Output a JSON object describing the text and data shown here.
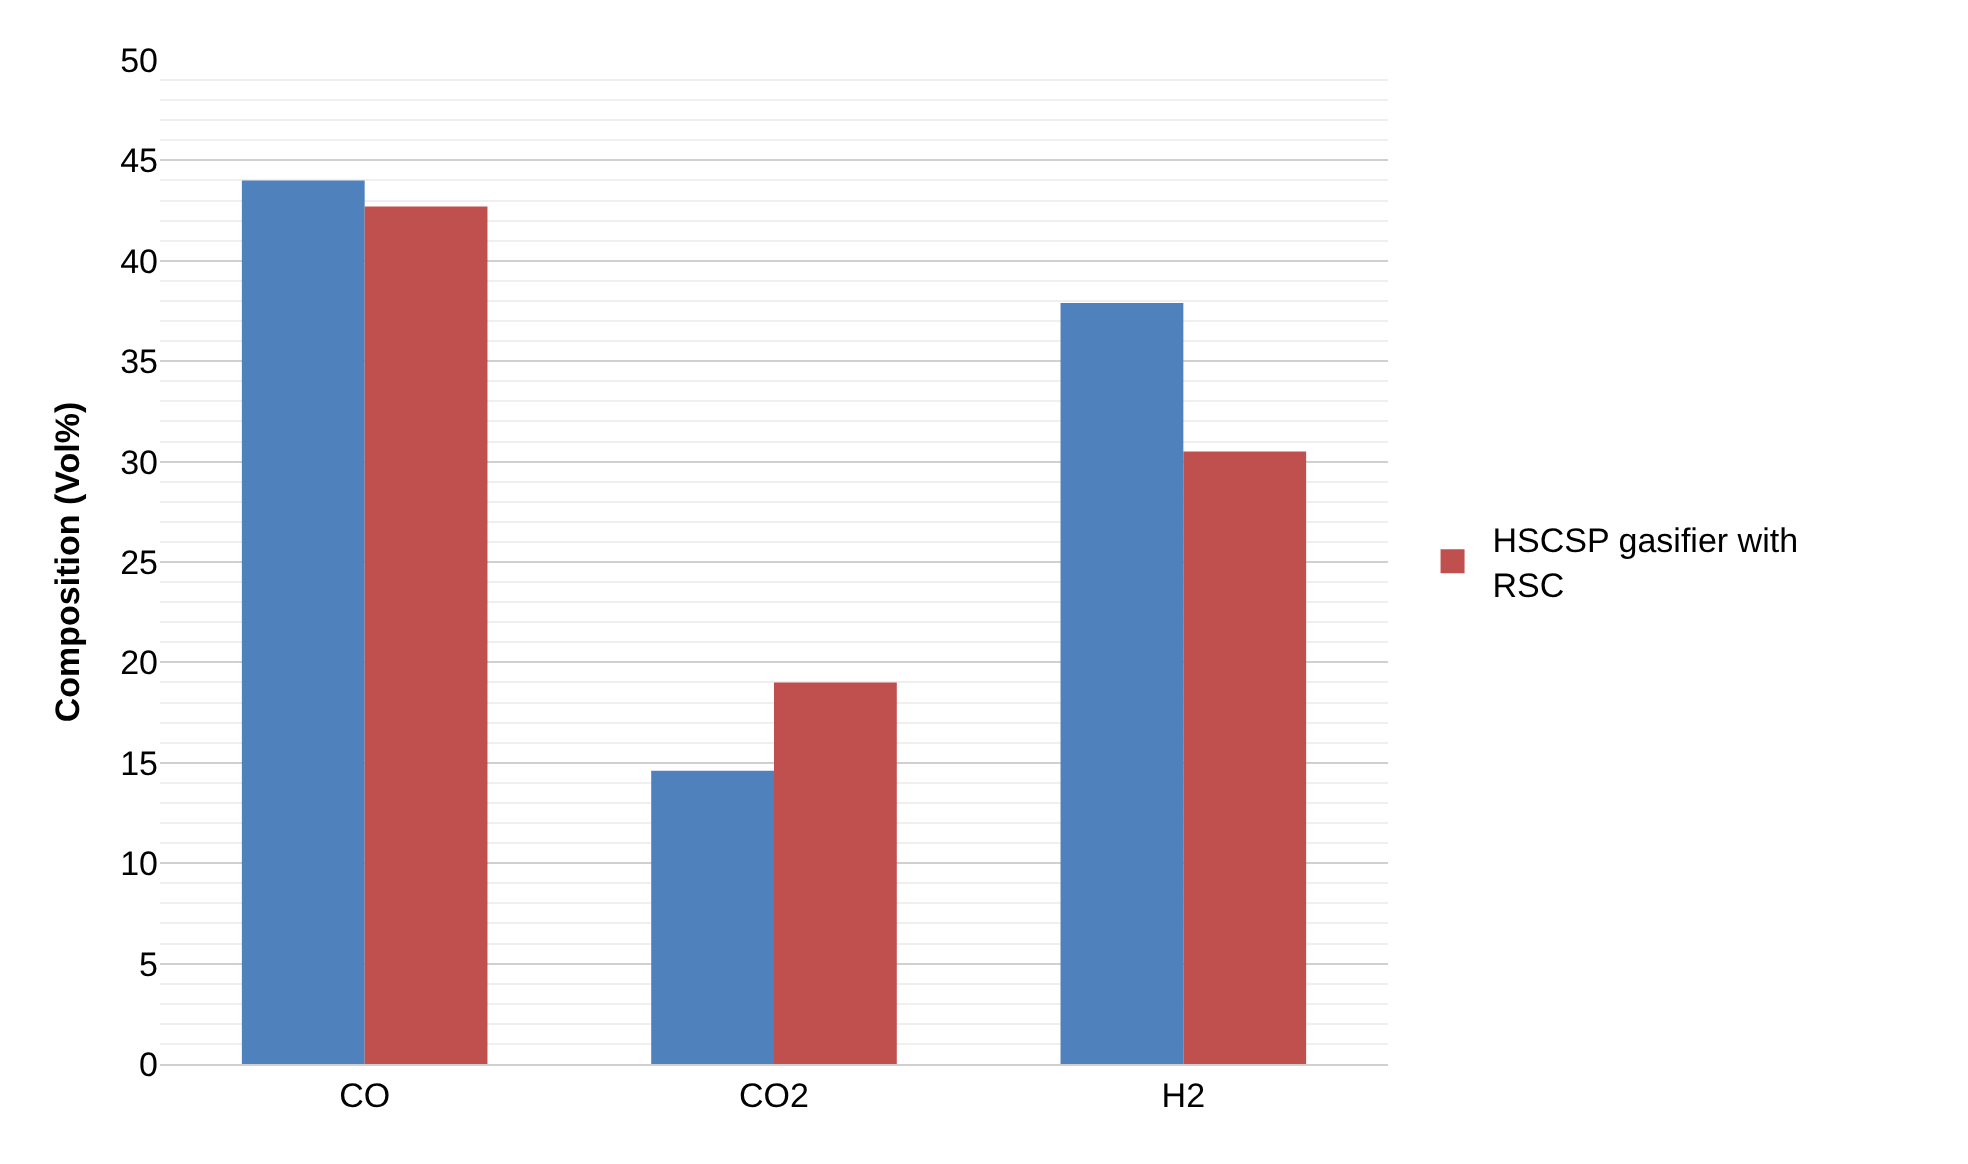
{
  "chart_data": {
    "type": "bar",
    "ylabel": "Composition (Vol%)",
    "categories": [
      "CO",
      "CO2",
      "H2"
    ],
    "series": [
      {
        "color": "#4f81bd",
        "values": [
          44.0,
          14.6,
          37.9
        ]
      },
      {
        "name": "HSCSP gasifier with RSC",
        "color": "#c0504d",
        "values": [
          42.7,
          19.0,
          30.5
        ]
      }
    ],
    "ylim": [
      0,
      50
    ],
    "yticks": [
      0,
      5,
      10,
      15,
      20,
      25,
      30,
      35,
      40,
      45,
      50
    ],
    "grid": true,
    "legend": "right"
  }
}
